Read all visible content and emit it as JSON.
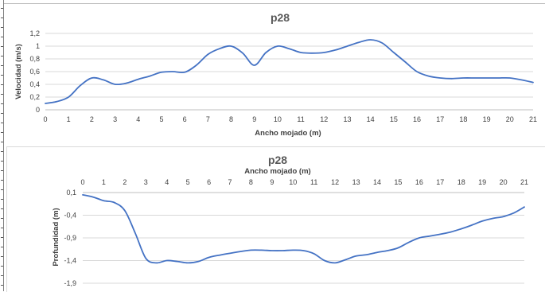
{
  "chart_data": [
    {
      "type": "line",
      "title": "p28",
      "xlabel": "Ancho mojado (m)",
      "ylabel": "Velocidad (m/s)",
      "xlim": [
        0,
        21
      ],
      "ylim": [
        0,
        1.2
      ],
      "x_ticks": [
        "0",
        "1",
        "2",
        "3",
        "4",
        "5",
        "6",
        "7",
        "8",
        "9",
        "10",
        "11",
        "12",
        "13",
        "14",
        "15",
        "16",
        "17",
        "18",
        "19",
        "20",
        "21"
      ],
      "y_ticks": [
        "0",
        "0,2",
        "0,4",
        "0,6",
        "0,8",
        "1",
        "1,2"
      ],
      "grid": true,
      "series": [
        {
          "color": "#4472c4",
          "x": [
            0,
            0.5,
            1,
            1.5,
            2,
            2.5,
            3,
            3.5,
            4,
            4.5,
            5,
            5.5,
            6,
            6.5,
            7,
            7.5,
            8,
            8.5,
            9,
            9.5,
            10,
            10.5,
            11,
            11.5,
            12,
            12.5,
            13,
            13.5,
            14,
            14.5,
            15,
            15.5,
            16,
            16.5,
            17,
            17.5,
            18,
            18.5,
            19,
            19.5,
            20,
            20.5,
            21
          ],
          "y": [
            0.1,
            0.13,
            0.2,
            0.38,
            0.5,
            0.47,
            0.4,
            0.42,
            0.48,
            0.53,
            0.59,
            0.6,
            0.59,
            0.7,
            0.87,
            0.96,
            1.0,
            0.89,
            0.7,
            0.9,
            1.0,
            0.96,
            0.9,
            0.89,
            0.9,
            0.94,
            1.0,
            1.06,
            1.1,
            1.05,
            0.9,
            0.75,
            0.6,
            0.53,
            0.5,
            0.49,
            0.5,
            0.5,
            0.5,
            0.5,
            0.5,
            0.47,
            0.43
          ]
        }
      ]
    },
    {
      "type": "line",
      "title": "p28",
      "xlabel": "Ancho mojado (m)",
      "ylabel": "Profundidad (m)",
      "xlim": [
        0,
        21
      ],
      "ylim": [
        -1.9,
        0.1
      ],
      "x_axis_position": "top",
      "x_ticks": [
        "0",
        "1",
        "2",
        "3",
        "4",
        "5",
        "6",
        "7",
        "8",
        "9",
        "10",
        "11",
        "12",
        "13",
        "14",
        "15",
        "16",
        "17",
        "18",
        "19",
        "20",
        "21"
      ],
      "y_ticks": [
        "0,1",
        "-0,4",
        "-0,9",
        "-1,4",
        "-1,9"
      ],
      "y_tick_values": [
        0.1,
        -0.4,
        -0.9,
        -1.4,
        -1.9
      ],
      "grid": true,
      "series": [
        {
          "color": "#4472c4",
          "x": [
            0,
            0.5,
            1,
            1.5,
            2,
            2.5,
            3,
            3.5,
            4,
            4.5,
            5,
            5.5,
            6,
            6.5,
            7,
            7.5,
            8,
            8.5,
            9,
            9.5,
            10,
            10.5,
            11,
            11.5,
            12,
            12.5,
            13,
            13.5,
            14,
            14.5,
            15,
            15.5,
            16,
            16.5,
            17,
            17.5,
            18,
            18.5,
            19,
            19.5,
            20,
            20.5,
            21
          ],
          "y": [
            0.05,
            0.0,
            -0.08,
            -0.12,
            -0.3,
            -0.8,
            -1.35,
            -1.45,
            -1.4,
            -1.42,
            -1.45,
            -1.42,
            -1.33,
            -1.28,
            -1.24,
            -1.2,
            -1.17,
            -1.17,
            -1.18,
            -1.18,
            -1.17,
            -1.18,
            -1.25,
            -1.4,
            -1.45,
            -1.38,
            -1.3,
            -1.27,
            -1.22,
            -1.18,
            -1.12,
            -1.0,
            -0.9,
            -0.86,
            -0.82,
            -0.77,
            -0.7,
            -0.62,
            -0.53,
            -0.47,
            -0.43,
            -0.35,
            -0.22
          ]
        }
      ]
    }
  ]
}
